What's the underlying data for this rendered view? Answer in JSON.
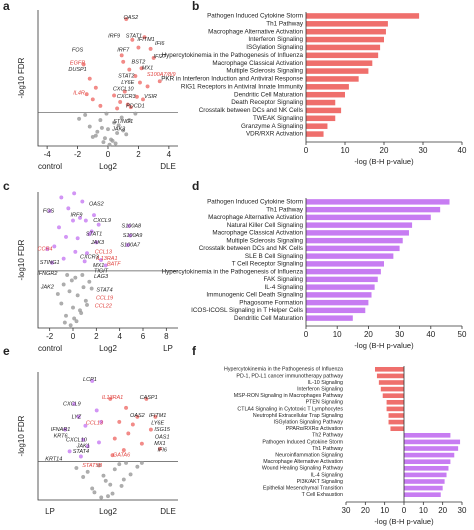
{
  "chart_data": [
    {
      "type": "volcano",
      "panel_label": "a",
      "xlim": [
        -4.6,
        4.6
      ],
      "xticks": [
        -4,
        -2,
        0,
        2,
        4
      ],
      "ylim": [
        0,
        10.5
      ],
      "threshold": 2.6,
      "xlabel": "Log2",
      "ylabel": "-log10 FDR",
      "left_label": "control",
      "right_label": "DLE",
      "series": [
        {
          "color": "#9a9a9a",
          "x": [
            -0.3,
            0.2,
            -0.8,
            0.6,
            -1.2,
            1.0,
            0.1,
            -0.5,
            0.4,
            -0.2,
            0.9,
            -1.5,
            1.4,
            0.0,
            0.3,
            -0.7,
            0.7,
            -0.1,
            1.8,
            -1.9,
            0.5,
            -0.4,
            1.2,
            -1.0
          ],
          "values": [
            0.3,
            0.5,
            0.8,
            1.0,
            1.5,
            1.2,
            0.1,
            2.0,
            1.8,
            0.6,
            2.2,
            2.4,
            2.0,
            1.3,
            0.4,
            1.1,
            1.6,
            2.5,
            2.5,
            2.1,
            0.2,
            1.4,
            0.9,
            0.7
          ]
        },
        {
          "color": "#ef6f6c",
          "x": [
            1.2,
            1.6,
            2.0,
            2.4,
            2.8,
            3.0,
            1.0,
            1.4,
            2.2,
            -1.6,
            -1.2,
            -0.8,
            1.8,
            2.6,
            1.1,
            0.8,
            -1.0,
            3.4,
            2.3,
            1.5,
            0.6,
            -0.5,
            1.3,
            1.9,
            0.9,
            -1.4,
            2.1,
            0.4
          ],
          "values": [
            9.8,
            8.2,
            7.6,
            8.4,
            7.5,
            6.8,
            6.5,
            5.9,
            6.0,
            6.3,
            5.2,
            4.5,
            5.4,
            4.6,
            4.2,
            3.4,
            3.6,
            5.0,
            3.6,
            3.0,
            2.9,
            3.1,
            3.2,
            3.8,
            7.0,
            4.0,
            4.9,
            3.9
          ]
        }
      ],
      "annotations": [
        {
          "text": "OAS2",
          "x": 1.5,
          "y": 9.9,
          "color": "#222"
        },
        {
          "text": "IRF9",
          "x": 0.4,
          "y": 8.5,
          "color": "#222"
        },
        {
          "text": "STAT1",
          "x": 1.7,
          "y": 8.5,
          "color": "#222"
        },
        {
          "text": "IFITM1",
          "x": 2.5,
          "y": 8.2,
          "color": "#222"
        },
        {
          "text": "IFI6",
          "x": 3.4,
          "y": 7.9,
          "color": "#222"
        },
        {
          "text": "FOS",
          "x": -2.0,
          "y": 7.4,
          "color": "#222"
        },
        {
          "text": "IRF7",
          "x": 1.0,
          "y": 7.4,
          "color": "#222"
        },
        {
          "text": "IFI27",
          "x": 3.4,
          "y": 6.9,
          "color": "#222"
        },
        {
          "text": "EGFR",
          "x": -2.0,
          "y": 6.4,
          "color": "#e0403c"
        },
        {
          "text": "DUSP1",
          "x": -2.0,
          "y": 5.9,
          "color": "#222"
        },
        {
          "text": "BST2",
          "x": 2.0,
          "y": 6.5,
          "color": "#222"
        },
        {
          "text": "MX1",
          "x": 2.6,
          "y": 6.0,
          "color": "#222"
        },
        {
          "text": "S100A7/8/9",
          "x": 3.5,
          "y": 5.5,
          "color": "#e0403c"
        },
        {
          "text": "STAT2",
          "x": 1.2,
          "y": 5.4,
          "color": "#222"
        },
        {
          "text": "LY6E",
          "x": 1.3,
          "y": 4.9,
          "color": "#222"
        },
        {
          "text": "CXCL10",
          "x": 1.0,
          "y": 4.4,
          "color": "#222"
        },
        {
          "text": "IL4R",
          "x": -1.9,
          "y": 4.1,
          "color": "#e0403c"
        },
        {
          "text": "CXCR3",
          "x": 1.2,
          "y": 3.8,
          "color": "#222"
        },
        {
          "text": "VSIR",
          "x": 2.8,
          "y": 3.8,
          "color": "#222"
        },
        {
          "text": "PDCD1",
          "x": 1.8,
          "y": 3.1,
          "color": "#222"
        },
        {
          "text": "STING1",
          "x": 1.0,
          "y": 1.9,
          "color": "#222"
        },
        {
          "text": "JAK3",
          "x": 0.7,
          "y": 1.3,
          "color": "#222"
        }
      ]
    },
    {
      "type": "hbar",
      "panel_label": "b",
      "color": "#ef6f6c",
      "xlim": [
        0,
        40
      ],
      "xticks": [
        0,
        10,
        20,
        30,
        40
      ],
      "xlabel": "-log (B-H p-value)",
      "categories": [
        "Pathogen Induced Cytokine Storm",
        "Th1 Pathway",
        "Macrophage Alternative Activation",
        "Interferon Signaling",
        "ISGylation Signaling",
        "Hypercytokinemia in the Pathogenesis of Influenza",
        "Macrophage Classical Activation",
        "Multiple Sclerosis Signaling",
        "PKR in Interferon Induction and Antiviral Response",
        "RIG1 Receptors in Antiviral Innate Immunity",
        "Dendritic Cell Maturation",
        "Death Receptor Signaling",
        "Crosstalk between DCs and NK Cells",
        "TWEAK Signaling",
        "Granzyme A Signaling",
        "VDR/RXR Activation"
      ],
      "values": [
        29,
        21,
        20.5,
        20,
        19,
        18.5,
        17,
        16,
        13.5,
        11,
        10,
        7.5,
        9,
        7.5,
        5.5,
        4.5
      ]
    },
    {
      "type": "volcano",
      "panel_label": "c",
      "xlim": [
        -3,
        9
      ],
      "xticks": [
        -2,
        0,
        2,
        4,
        6,
        8
      ],
      "ylim": [
        0,
        10
      ],
      "threshold": 4.2,
      "xlabel": "Log2",
      "ylabel": "-log10 FDR",
      "left_label": "control",
      "right_label": "LP",
      "series": [
        {
          "color": "#9a9a9a",
          "x": [
            -0.2,
            0.3,
            -0.6,
            0.7,
            0.0,
            -1.0,
            1.1,
            0.4,
            -0.3,
            0.9,
            -0.8,
            1.4,
            0.2,
            -0.5,
            0.6,
            -1.3,
            1.6,
            0.1,
            -0.1,
            0.8,
            -0.7,
            1.2
          ],
          "values": [
            0.2,
            0.5,
            0.9,
            1.1,
            1.5,
            1.8,
            2.0,
            2.4,
            2.7,
            3.0,
            3.2,
            3.4,
            3.7,
            3.9,
            1.3,
            2.5,
            2.9,
            0.7,
            3.5,
            3.9,
            0.4,
            1.7
          ]
        },
        {
          "color": "#c77cf2",
          "x": [
            -2.0,
            -1.6,
            -1.2,
            -0.8,
            -0.4,
            0.0,
            0.4,
            0.8,
            1.2,
            1.6,
            2.0,
            2.4,
            2.8,
            -1.8,
            -1.0,
            0.2,
            0.6,
            1.0,
            1.4,
            1.8,
            2.2,
            -0.6,
            4.8,
            4.9,
            4.7,
            -2.2,
            0.1,
            1.1
          ],
          "values": [
            8.6,
            6.0,
            7.4,
            5.1,
            8.8,
            7.9,
            6.6,
            9.3,
            5.5,
            7.1,
            6.3,
            5.0,
            4.6,
            4.8,
            9.6,
            5.6,
            8.1,
            4.9,
            6.9,
            8.3,
            7.6,
            6.7,
            7.5,
            6.8,
            6.1,
            5.8,
            9.9,
            7.9
          ]
        }
      ],
      "annotations": [
        {
          "text": "OAS2",
          "x": 2.0,
          "y": 9.1,
          "color": "#222"
        },
        {
          "text": "FOS",
          "x": -2.1,
          "y": 8.6,
          "color": "#222"
        },
        {
          "text": "IRF9",
          "x": 0.3,
          "y": 8.3,
          "color": "#222"
        },
        {
          "text": "CXCL9",
          "x": 2.5,
          "y": 7.9,
          "color": "#222"
        },
        {
          "text": "S100A8",
          "x": 5.0,
          "y": 7.5,
          "color": "#222"
        },
        {
          "text": "S100A9",
          "x": 5.1,
          "y": 6.8,
          "color": "#222"
        },
        {
          "text": "STAT1",
          "x": 1.8,
          "y": 6.9,
          "color": "#222"
        },
        {
          "text": "JAK3",
          "x": 2.1,
          "y": 6.3,
          "color": "#222"
        },
        {
          "text": "S100A7",
          "x": 4.9,
          "y": 6.1,
          "color": "#222"
        },
        {
          "text": "CCR4",
          "x": -2.4,
          "y": 5.8,
          "color": "#e0403c"
        },
        {
          "text": "CCL13",
          "x": 2.6,
          "y": 5.6,
          "color": "#e0403c"
        },
        {
          "text": "IL13RA1",
          "x": 2.9,
          "y": 5.1,
          "color": "#e0403c"
        },
        {
          "text": "CXCR3",
          "x": 1.4,
          "y": 5.2,
          "color": "#222"
        },
        {
          "text": "STING1",
          "x": -2.0,
          "y": 4.8,
          "color": "#222"
        },
        {
          "text": "BATF",
          "x": 3.5,
          "y": 4.7,
          "color": "#e0403c"
        },
        {
          "text": "MX1",
          "x": 2.2,
          "y": 4.6,
          "color": "#222"
        },
        {
          "text": "TIGIT",
          "x": 2.4,
          "y": 4.2,
          "color": "#222"
        },
        {
          "text": "IFNGR2",
          "x": -2.2,
          "y": 4.0,
          "color": "#222"
        },
        {
          "text": "LAG3",
          "x": 2.4,
          "y": 3.8,
          "color": "#222"
        },
        {
          "text": "JAK2",
          "x": -2.2,
          "y": 3.0,
          "color": "#222"
        },
        {
          "text": "STAT4",
          "x": 2.7,
          "y": 2.8,
          "color": "#222"
        },
        {
          "text": "CCL19",
          "x": 2.7,
          "y": 2.2,
          "color": "#e0403c"
        },
        {
          "text": "CCL22",
          "x": 2.6,
          "y": 1.6,
          "color": "#e0403c"
        }
      ]
    },
    {
      "type": "hbar",
      "panel_label": "d",
      "color": "#c77cf2",
      "xlim": [
        0,
        50
      ],
      "xticks": [
        0,
        10,
        20,
        30,
        40,
        50
      ],
      "xlabel": "-log (B-H p-value)",
      "categories": [
        "Pathogen Induced Cytokine Storm",
        "Th1 Pathway",
        "Macrophage Alternative Activation",
        "Natural Killer Cell Signaling",
        "Macrophage Classical Activation",
        "Multiple Sclerosis Signaling",
        "Crosstalk between DCs and NK Cells",
        "SLE B Cell Signaling",
        "T Cell Receptor Signaling",
        "Hypercytokinemia in the Pathogenesis of Influenza",
        "FAK Signaling",
        "IL-4 Signaling",
        "Immunogenic Cell Death Signaling",
        "Phagosome Formation",
        "ICOS-ICOSL Signaling in T Helper Cells",
        "Dendritic Cell Maturation"
      ],
      "values": [
        46,
        43,
        40,
        34,
        33,
        31,
        30,
        28,
        25,
        24,
        23,
        22,
        21,
        20,
        19,
        15
      ]
    },
    {
      "type": "volcano",
      "panel_label": "e",
      "xlim": [
        -3,
        3.2
      ],
      "ylim": [
        0,
        10
      ],
      "threshold": 3.0,
      "xlabel": "Log2",
      "ylabel": "-log10 FDR",
      "left_label": "LP",
      "right_label": "DLE",
      "series": [
        {
          "color": "#9a9a9a",
          "x": [
            -0.2,
            0.3,
            -0.6,
            0.7,
            0.0,
            -1.0,
            1.1,
            0.4,
            -0.3,
            0.9,
            -0.8,
            1.4,
            0.2,
            -0.5,
            0.6,
            -1.3,
            1.6,
            0.1,
            -0.1,
            0.8
          ],
          "values": [
            0.2,
            0.5,
            0.9,
            1.1,
            1.5,
            1.8,
            2.0,
            2.4,
            2.7,
            2.9,
            2.2,
            2.6,
            1.2,
            0.6,
            2.8,
            2.5,
            2.9,
            0.3,
            1.9,
            1.6
          ]
        },
        {
          "color": "#c77cf2",
          "x": [
            -1.8,
            -1.4,
            -1.0,
            -0.6,
            -0.2,
            -1.2,
            -0.8,
            -0.4,
            -1.6,
            -0.9,
            -0.3,
            -1.1
          ],
          "values": [
            5.5,
            7.5,
            4.7,
            9.3,
            6.1,
            6.5,
            4.2,
            7.0,
            3.8,
            5.8,
            4.5,
            3.4
          ]
        },
        {
          "color": "#ef6f6c",
          "x": [
            0.2,
            0.6,
            1.0,
            1.4,
            1.8,
            2.2,
            0.4,
            0.8,
            1.2,
            1.6,
            2.0,
            2.4,
            0.3,
            0.9
          ],
          "values": [
            7.9,
            6.1,
            5.2,
            6.5,
            7.9,
            6.5,
            4.8,
            3.9,
            5.9,
            4.4,
            5.5,
            4.0,
            3.5,
            7.2
          ]
        }
      ],
      "annotations": [
        {
          "text": "LCP1",
          "x": -0.7,
          "y": 9.4,
          "color": "#222"
        },
        {
          "text": "IL13RA1",
          "x": 0.3,
          "y": 8.0,
          "color": "#e0403c"
        },
        {
          "text": "CASP1",
          "x": 1.9,
          "y": 8.0,
          "color": "#222"
        },
        {
          "text": "CXCL9",
          "x": -1.5,
          "y": 7.5,
          "color": "#222"
        },
        {
          "text": "LYZ",
          "x": -1.3,
          "y": 6.5,
          "color": "#222"
        },
        {
          "text": "OAS2",
          "x": 1.4,
          "y": 6.6,
          "color": "#222"
        },
        {
          "text": "IFITM1",
          "x": 2.3,
          "y": 6.6,
          "color": "#222"
        },
        {
          "text": "CCL13",
          "x": -0.5,
          "y": 6.0,
          "color": "#e0403c"
        },
        {
          "text": "LY6E",
          "x": 2.3,
          "y": 6.0,
          "color": "#222"
        },
        {
          "text": "IFNAR1",
          "x": -2.0,
          "y": 5.5,
          "color": "#222"
        },
        {
          "text": "ISG15",
          "x": 2.5,
          "y": 5.5,
          "color": "#222"
        },
        {
          "text": "KRT6",
          "x": -2.0,
          "y": 5.0,
          "color": "#222"
        },
        {
          "text": "OAS1",
          "x": 2.5,
          "y": 4.9,
          "color": "#222"
        },
        {
          "text": "CXCL10",
          "x": -1.3,
          "y": 4.7,
          "color": "#222"
        },
        {
          "text": "MX1",
          "x": 2.4,
          "y": 4.4,
          "color": "#222"
        },
        {
          "text": "JAK1",
          "x": -1.0,
          "y": 4.2,
          "color": "#222"
        },
        {
          "text": "IFI6",
          "x": 2.5,
          "y": 3.9,
          "color": "#222"
        },
        {
          "text": "STAT4",
          "x": -1.1,
          "y": 3.8,
          "color": "#222"
        },
        {
          "text": "GATA6",
          "x": 0.7,
          "y": 3.5,
          "color": "#e0403c"
        },
        {
          "text": "KRT14",
          "x": -2.3,
          "y": 3.2,
          "color": "#222"
        },
        {
          "text": "STAT5B",
          "x": -0.6,
          "y": 2.7,
          "color": "#e0403c"
        }
      ]
    },
    {
      "type": "hbar",
      "panel_label": "f",
      "color": "#c77cf2",
      "negative_color": "#ef6f6c",
      "xlim": [
        -30,
        30
      ],
      "xticks": [
        {
          "value": -30,
          "label": "30"
        },
        {
          "value": -20,
          "label": "20"
        },
        {
          "value": -10,
          "label": "10"
        },
        0,
        10,
        20,
        30
      ],
      "xlabel": "-log (B-H p-value)",
      "categories": [
        "Hypercytokinemia in the Pathogenesis of Influenza",
        "PD-1, PD-L1 cancer immunotherapy pathway",
        "IL-10 Signaling",
        "Interferon Signaling",
        "MSP-RON Signaling in Macrophages Pathway",
        "PTEN Signaling",
        "CTLA4 Signaling in Cytotoxic T Lymphocytes",
        "Neutrophil Extracellular Trap Signaling",
        "ISGylation Signaling Pathway",
        "PPARα/RXRα Activation",
        "Th2 Pathway",
        "Pathogen Induced Cytokine Storm",
        "Th1 Pathway",
        "Neuroinflammation Signaling",
        "Macrophage Alternative Activation",
        "Wound Healing Signaling Pathway",
        "IL-4 Signaling",
        "PI3K/AKT Signaling",
        "Epithelial Mesenchymal Transition",
        "T Cell Exhaustion"
      ],
      "values": [
        -15,
        -14,
        -13,
        -12,
        -11,
        -9,
        -9,
        -8,
        -8,
        -7,
        24,
        29,
        28,
        26,
        24,
        23,
        22,
        21,
        20,
        19
      ]
    }
  ]
}
